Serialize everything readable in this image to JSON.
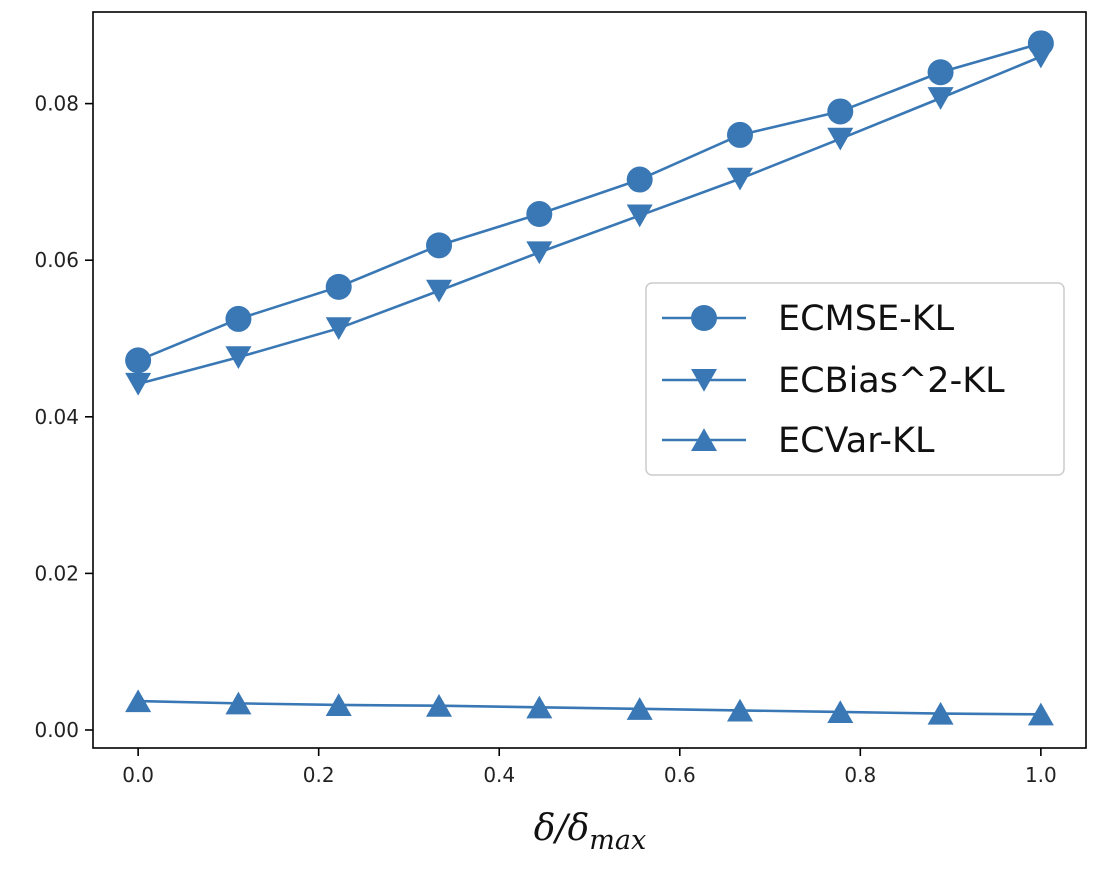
{
  "chart_data": {
    "type": "line",
    "title": "",
    "xlabel": "δ/δ",
    "xlabel_subscript": "max",
    "ylabel": "",
    "xlim": [
      -0.05,
      1.05
    ],
    "ylim": [
      -0.0023,
      0.0917
    ],
    "x": [
      0.0,
      0.1111,
      0.2222,
      0.3333,
      0.4444,
      0.5556,
      0.6667,
      0.7778,
      0.8889,
      1.0
    ],
    "xticks": [
      0.0,
      0.2,
      0.4,
      0.6,
      0.8,
      1.0
    ],
    "xtick_labels": [
      "0.0",
      "0.2",
      "0.4",
      "0.6",
      "0.8",
      "1.0"
    ],
    "yticks": [
      0.0,
      0.02,
      0.04,
      0.06,
      0.08
    ],
    "ytick_labels": [
      "0.00",
      "0.02",
      "0.04",
      "0.06",
      "0.08"
    ],
    "legend_position": "center-right",
    "color": "#3a78b5",
    "series": [
      {
        "name": "ECMSE-KL",
        "marker": "circle",
        "values": [
          0.0472,
          0.0525,
          0.0566,
          0.0619,
          0.0659,
          0.0703,
          0.076,
          0.079,
          0.084,
          0.0877
        ]
      },
      {
        "name": "ECBias^2-KL",
        "marker": "triangle-down",
        "values": [
          0.0442,
          0.0476,
          0.0513,
          0.0561,
          0.061,
          0.0657,
          0.0704,
          0.0755,
          0.0807,
          0.086
        ]
      },
      {
        "name": "ECVar-KL",
        "marker": "triangle-up",
        "values": [
          0.0037,
          0.0034,
          0.0032,
          0.0031,
          0.0029,
          0.0027,
          0.0025,
          0.0023,
          0.0021,
          0.002
        ]
      }
    ]
  }
}
